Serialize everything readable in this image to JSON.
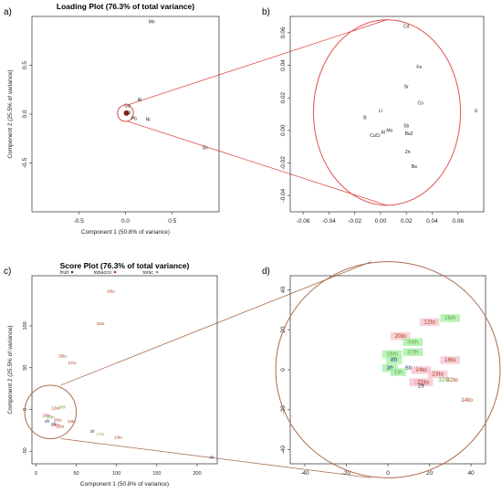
{
  "colors": {
    "zoom_line": "#e05050",
    "circle_brown": "#a86a4a",
    "fruit": "#1f3c6e",
    "tobacco": "#b03a1c",
    "tonic": "#6aa64a",
    "highlight_green": "#a6f0a6",
    "highlight_pink": "#f5c6d0",
    "text_brown": "#8b4513"
  },
  "chart_data": [
    {
      "id": "a",
      "panel_label": "a)",
      "type": "scatter",
      "title": "Loading Plot (76.3% of total variance)",
      "xlabel": "Component 1 (50.8% of variance)",
      "ylabel": "Component 2 (25.5% of variance)",
      "xlim": [
        -1.0,
        1.0
      ],
      "ylim": [
        -1.0,
        1.0
      ],
      "xticks": [
        -0.5,
        0.0,
        0.5
      ],
      "yticks": [
        -0.5,
        0.0,
        0.5
      ],
      "xtick_labels": [
        "-0.5",
        "0.0",
        "0.5"
      ],
      "ytick_labels": [
        "-0.5",
        "0.0",
        "0.5"
      ],
      "grid": false,
      "points": [
        {
          "label": "Mn",
          "x": 0.28,
          "y": 0.93
        },
        {
          "label": "Al",
          "x": 0.15,
          "y": 0.13
        },
        {
          "label": "Ni",
          "x": 0.24,
          "y": -0.07
        },
        {
          "label": "Pb",
          "x": 0.09,
          "y": -0.06
        },
        {
          "label": "Sn",
          "x": 0.85,
          "y": -0.36
        },
        {
          "label": "Cd",
          "x": 0.02,
          "y": 0.07
        },
        {
          "label": "U",
          "x": 0.04,
          "y": 0.0
        }
      ],
      "zoom_circle": {
        "cx": 0.0,
        "cy": 0.01,
        "r": 0.085
      }
    },
    {
      "id": "b",
      "panel_label": "b)",
      "type": "scatter",
      "xlim": [
        -0.07,
        0.08
      ],
      "ylim": [
        -0.05,
        0.07
      ],
      "xticks": [
        -0.06,
        -0.04,
        -0.02,
        0.0,
        0.02,
        0.04,
        0.06
      ],
      "yticks": [
        -0.04,
        -0.02,
        0.0,
        0.02,
        0.04,
        0.06
      ],
      "xtick_labels": [
        "-0.06",
        "-0.04",
        "-0.02",
        "0.00",
        "0.02",
        "0.04",
        "0.06"
      ],
      "ytick_labels": [
        "-0.04",
        "-0.02",
        "0.00",
        "0.02",
        "0.04",
        "0.06"
      ],
      "grid": false,
      "points": [
        {
          "label": "Cd",
          "x": 0.02,
          "y": 0.063
        },
        {
          "label": "Fe",
          "x": 0.03,
          "y": 0.038
        },
        {
          "label": "Sr",
          "x": 0.02,
          "y": 0.026
        },
        {
          "label": "Co",
          "x": 0.031,
          "y": 0.016
        },
        {
          "label": "U",
          "x": 0.074,
          "y": 0.011
        },
        {
          "label": "Li",
          "x": 0.0,
          "y": 0.011
        },
        {
          "label": "B",
          "x": -0.012,
          "y": 0.007
        },
        {
          "label": "Sb",
          "x": 0.02,
          "y": 0.002
        },
        {
          "label": "Ba2",
          "x": 0.022,
          "y": -0.003
        },
        {
          "label": "Zn",
          "x": 0.021,
          "y": -0.014
        },
        {
          "label": "Ba",
          "x": 0.026,
          "y": -0.023
        },
        {
          "label": "Mo",
          "x": 0.007,
          "y": -0.001
        },
        {
          "label": "Cu",
          "x": -0.006,
          "y": -0.004
        },
        {
          "label": "Cr",
          "x": -0.002,
          "y": -0.004
        },
        {
          "label": "Al",
          "x": 0.002,
          "y": -0.002
        }
      ],
      "zoom_circle": {
        "cx": 0.005,
        "cy": 0.011,
        "r": 0.057
      }
    },
    {
      "id": "c",
      "panel_label": "c)",
      "type": "scatter",
      "title": "Score Plot (76.3% of total variance)",
      "xlabel": "Component 1 (50.8% of variance)",
      "ylabel": "Component 2 (25.5% of variance)",
      "xlim": [
        -5,
        225
      ],
      "ylim": [
        -65,
        160
      ],
      "xticks": [
        0,
        50,
        100,
        150,
        200
      ],
      "yticks": [
        -50,
        0,
        50,
        100
      ],
      "xtick_labels": [
        "0",
        "50",
        "100",
        "150",
        "200"
      ],
      "ytick_labels": [
        "-50",
        "0",
        "50",
        "100"
      ],
      "grid": false,
      "legend": {
        "placement": "top",
        "entries": [
          {
            "name": "fruit",
            "group": "fruit"
          },
          {
            "name": "tobacco",
            "group": "tobacco"
          },
          {
            "name": "tonic",
            "group": "tonic"
          }
        ]
      },
      "points": [
        {
          "label": "10to",
          "x": 93,
          "y": 140,
          "group": "tobacco"
        },
        {
          "label": "15to",
          "x": 80,
          "y": 101,
          "group": "tobacco"
        },
        {
          "label": "25to",
          "x": 33,
          "y": 62,
          "group": "tobacco"
        },
        {
          "label": "27to",
          "x": 45,
          "y": 54,
          "group": "tobacco"
        },
        {
          "label": "12to",
          "x": 24,
          "y": 0,
          "group": "tobacco"
        },
        {
          "label": "26th",
          "x": 32,
          "y": 1,
          "group": "tonic"
        },
        {
          "label": "20to",
          "x": 13,
          "y": -9,
          "group": "tobacco"
        },
        {
          "label": "34th",
          "x": 18,
          "y": -11,
          "group": "tonic"
        },
        {
          "label": "14to",
          "x": 44,
          "y": -16,
          "group": "tobacco"
        },
        {
          "label": "16to",
          "x": 27,
          "y": -14,
          "group": "tobacco"
        },
        {
          "label": "8fr",
          "x": 14,
          "y": -16,
          "group": "fruit"
        },
        {
          "label": "6fr",
          "x": 22,
          "y": -19,
          "group": "fruit"
        },
        {
          "label": "22to",
          "x": 30,
          "y": -22,
          "group": "tobacco"
        },
        {
          "label": "23to",
          "x": 24,
          "y": -20,
          "group": "tobacco"
        },
        {
          "label": "2fr",
          "x": 70,
          "y": -28,
          "group": "fruit"
        },
        {
          "label": "17to",
          "x": 80,
          "y": -31,
          "group": "tonic"
        },
        {
          "label": "13to",
          "x": 102,
          "y": -35,
          "group": "tobacco"
        },
        {
          "label": "4fr",
          "x": 218,
          "y": -59,
          "group": "fruit"
        }
      ],
      "zoom_circle": {
        "cx": 18,
        "cy": -3,
        "r": 32
      }
    },
    {
      "id": "d",
      "panel_label": "d)",
      "type": "scatter",
      "xlim": [
        -47,
        47
      ],
      "ylim": [
        -47,
        47
      ],
      "xticks": [
        -40,
        -20,
        0,
        20,
        40
      ],
      "yticks": [
        -40,
        -20,
        0,
        20,
        40
      ],
      "xtick_labels": [
        "-40",
        "-20",
        "0",
        "20",
        "40"
      ],
      "ytick_labels": [
        "-40",
        "-20",
        "0",
        "20",
        "40"
      ],
      "grid": false,
      "points": [
        {
          "label": "26th",
          "x": 30,
          "y": 25,
          "group": "tonic",
          "highlight": "green"
        },
        {
          "label": "12to",
          "x": 20,
          "y": 23,
          "group": "tobacco",
          "highlight": "pink"
        },
        {
          "label": "20to",
          "x": 6,
          "y": 16,
          "group": "tobacco",
          "highlight": "pink"
        },
        {
          "label": "34th",
          "x": 12,
          "y": 13,
          "group": "tonic",
          "highlight": "green"
        },
        {
          "label": "37th",
          "x": 12,
          "y": 8,
          "group": "tonic",
          "highlight": "green"
        },
        {
          "label": "16to",
          "x": 30,
          "y": 4,
          "group": "tobacco",
          "highlight": "pink"
        },
        {
          "label": "16th",
          "x": 2,
          "y": 7,
          "group": "tonic",
          "highlight": "green"
        },
        {
          "label": "8fr",
          "x": 3,
          "y": 4,
          "group": "fruit",
          "highlight": "green"
        },
        {
          "label": "3fr",
          "x": 1,
          "y": 0,
          "group": "fruit",
          "highlight": "green"
        },
        {
          "label": "6fr",
          "x": 10,
          "y": 0,
          "group": "fruit",
          "highlight": ""
        },
        {
          "label": "1th",
          "x": 5,
          "y": -2,
          "group": "tonic",
          "highlight": "green"
        },
        {
          "label": "24to",
          "x": 16,
          "y": -1,
          "group": "tobacco",
          "highlight": "pink"
        },
        {
          "label": "23to",
          "x": 24,
          "y": -3,
          "group": "tobacco",
          "highlight": "pink"
        },
        {
          "label": "22to",
          "x": 31,
          "y": -6,
          "group": "tobacco",
          "highlight": ""
        },
        {
          "label": "32th",
          "x": 27,
          "y": -6,
          "group": "tonic",
          "highlight": ""
        },
        {
          "label": "18to",
          "x": 15,
          "y": -7,
          "group": "tobacco",
          "highlight": "pink"
        },
        {
          "label": "21to",
          "x": 17,
          "y": -7,
          "group": "tobacco",
          "highlight": "pink"
        },
        {
          "label": "2fr",
          "x": 16,
          "y": -9,
          "group": "fruit",
          "highlight": ""
        },
        {
          "label": "14to",
          "x": 38,
          "y": -16,
          "group": "tobacco",
          "highlight": ""
        }
      ],
      "zoom_circle": {
        "cx": 0,
        "cy": 0,
        "r": 54
      }
    }
  ]
}
